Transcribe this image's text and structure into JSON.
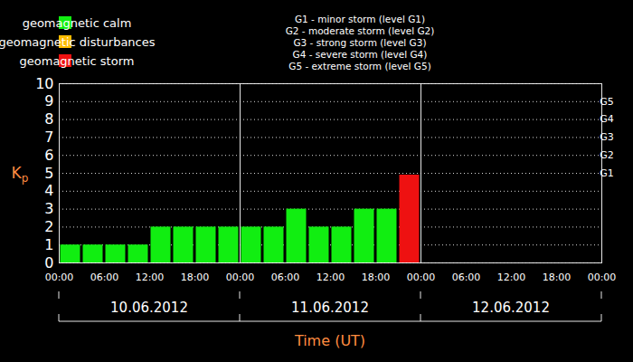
{
  "chart_data": {
    "type": "bar",
    "x": [
      0,
      3,
      6,
      9,
      12,
      15,
      18,
      21,
      24,
      27,
      30,
      33,
      36,
      39,
      42,
      45
    ],
    "xlim": [
      0,
      72
    ],
    "xticks": [
      {
        "value": 0,
        "label": "00:00"
      },
      {
        "value": 6,
        "label": "06:00"
      },
      {
        "value": 12,
        "label": "12:00"
      },
      {
        "value": 18,
        "label": "18:00"
      },
      {
        "value": 24,
        "label": "00:00"
      },
      {
        "value": 30,
        "label": "06:00"
      },
      {
        "value": 36,
        "label": "12:00"
      },
      {
        "value": 42,
        "label": "18:00"
      },
      {
        "value": 48,
        "label": "00:00"
      },
      {
        "value": 54,
        "label": "06:00"
      },
      {
        "value": 60,
        "label": "12:00"
      },
      {
        "value": 66,
        "label": "18:00"
      },
      {
        "value": 72,
        "label": "00:00"
      }
    ],
    "date_labels": [
      "10.06.2012",
      "11.06.2012",
      "12.06.2012"
    ],
    "x_label": "Time (UT)",
    "y_label": "Kp",
    "ylim": [
      0,
      10
    ],
    "yticks": [
      0,
      1,
      2,
      3,
      4,
      5,
      6,
      7,
      8,
      9,
      10
    ],
    "y2lim": [
      0,
      10
    ],
    "y2ticks": [
      {
        "value": 5,
        "label": "G1"
      },
      {
        "value": 6,
        "label": "G2"
      },
      {
        "value": 7,
        "label": "G3"
      },
      {
        "value": 8,
        "label": "G4"
      },
      {
        "value": 9,
        "label": "G5"
      }
    ],
    "series": [
      {
        "name": "geomagnetic calm",
        "color": "#11ee11",
        "values": [
          1,
          1,
          1,
          1,
          2,
          2,
          2,
          2,
          2,
          2,
          3,
          2,
          2,
          3,
          3,
          null
        ]
      },
      {
        "name": "geomagnetic disturbances",
        "color": "#ffbb00",
        "values": [
          null,
          null,
          null,
          null,
          null,
          null,
          null,
          null,
          null,
          null,
          null,
          null,
          null,
          null,
          null,
          null
        ]
      },
      {
        "name": "geomagnetic storm",
        "color": "#ee1111",
        "values": [
          null,
          null,
          null,
          null,
          null,
          null,
          null,
          null,
          null,
          null,
          null,
          null,
          null,
          null,
          null,
          4.9
        ]
      }
    ],
    "annotations": [
      "G1 - minor storm (level G1)",
      "G2 - moderate storm (level G2)",
      "G3 - strong storm (level G3)",
      "G4 - severe storm (level G4)",
      "G5 - extreme storm (level G5)"
    ],
    "grid": true,
    "legend": "top-left"
  }
}
